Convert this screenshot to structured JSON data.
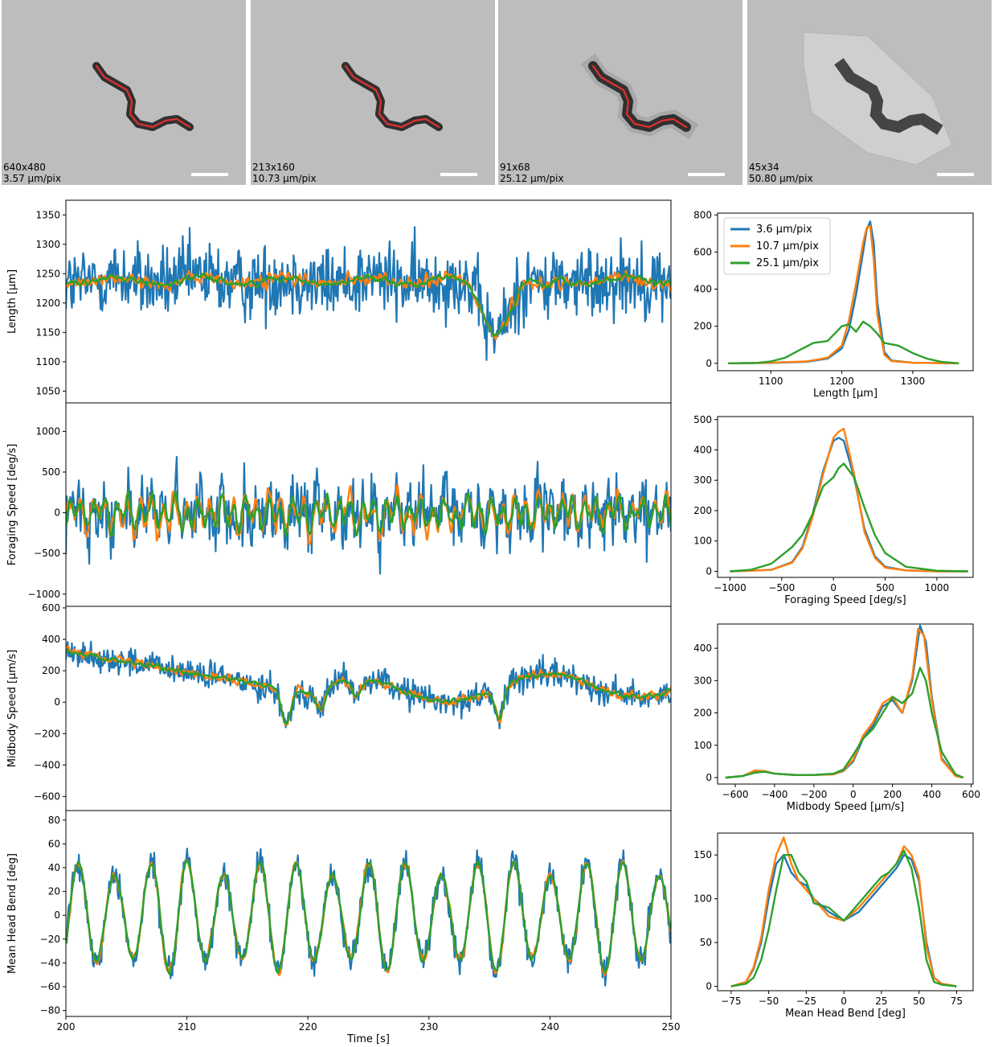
{
  "panels": [
    {
      "resolution": "640x480",
      "scale": "3.57 µm/pix",
      "crop": 1.0
    },
    {
      "resolution": "213x160",
      "scale": "10.73 µm/pix",
      "crop": 1.6
    },
    {
      "resolution": "91x68",
      "scale": "25.12 µm/pix",
      "crop": 3.2
    },
    {
      "resolution": "45x34",
      "scale": "50.80 µm/pix",
      "crop": 6.5
    }
  ],
  "colors": {
    "blue": "#1f77b4",
    "orange": "#ff7f0e",
    "green": "#2ca02c",
    "midline": "#e03030",
    "panel_bg": "#bdbdbd"
  },
  "chart_data": [
    {
      "id": "ts_length",
      "type": "line",
      "xlabel": "",
      "ylabel": "Length [µm]",
      "xlim": [
        200,
        250
      ],
      "ylim": [
        1030,
        1375
      ],
      "yticks": [
        1050,
        1100,
        1150,
        1200,
        1250,
        1300,
        1350
      ],
      "series": [
        {
          "name": "3.6 µm/pix",
          "color": "#1f77b4"
        },
        {
          "name": "10.7 µm/pix",
          "color": "#ff7f0e"
        },
        {
          "name": "25.1 µm/pix",
          "color": "#2ca02c"
        }
      ]
    },
    {
      "id": "ts_foraging",
      "type": "line",
      "xlabel": "",
      "ylabel": "Foraging Speed [deg/s]",
      "xlim": [
        200,
        250
      ],
      "ylim": [
        -1150,
        1350
      ],
      "yticks": [
        -1000,
        -500,
        0,
        500,
        1000
      ],
      "series": [
        {
          "name": "3.6 µm/pix",
          "color": "#1f77b4"
        },
        {
          "name": "10.7 µm/pix",
          "color": "#ff7f0e"
        },
        {
          "name": "25.1 µm/pix",
          "color": "#2ca02c"
        }
      ]
    },
    {
      "id": "ts_midbody",
      "type": "line",
      "xlabel": "",
      "ylabel": "Midbody Speed [µm/s]",
      "xlim": [
        200,
        250
      ],
      "ylim": [
        -690,
        610
      ],
      "yticks": [
        -600,
        -400,
        -200,
        0,
        200,
        400,
        600
      ],
      "series": [
        {
          "name": "3.6 µm/pix",
          "color": "#1f77b4"
        },
        {
          "name": "10.7 µm/pix",
          "color": "#ff7f0e"
        },
        {
          "name": "25.1 µm/pix",
          "color": "#2ca02c"
        }
      ]
    },
    {
      "id": "ts_headbend",
      "type": "line",
      "xlabel": "Time [s]",
      "ylabel": "Mean Head Bend [deg]",
      "xlim": [
        200,
        250
      ],
      "ylim": [
        -85,
        88
      ],
      "yticks": [
        -80,
        -60,
        -40,
        -20,
        0,
        20,
        40,
        60,
        80
      ],
      "xticks": [
        200,
        210,
        220,
        230,
        240,
        250
      ],
      "series": [
        {
          "name": "3.6 µm/pix",
          "color": "#1f77b4"
        },
        {
          "name": "10.7 µm/pix",
          "color": "#ff7f0e"
        },
        {
          "name": "25.1 µm/pix",
          "color": "#2ca02c"
        }
      ]
    },
    {
      "id": "h_length",
      "type": "line",
      "xlabel": "Length [µm]",
      "ylabel": "",
      "xlim": [
        1025,
        1385
      ],
      "ylim": [
        -40,
        810
      ],
      "xticks": [
        1100,
        1200,
        1300
      ],
      "yticks": [
        0,
        200,
        400,
        600,
        800
      ],
      "legend": "top-left",
      "series": [
        {
          "name": "3.6 µm/pix",
          "color": "#1f77b4",
          "x": [
            1040,
            1100,
            1150,
            1180,
            1200,
            1210,
            1220,
            1230,
            1235,
            1240,
            1245,
            1250,
            1260,
            1270,
            1300,
            1365
          ],
          "y": [
            0,
            2,
            8,
            25,
            80,
            180,
            370,
            600,
            720,
            765,
            650,
            330,
            60,
            15,
            3,
            0
          ]
        },
        {
          "name": "10.7 µm/pix",
          "color": "#ff7f0e",
          "x": [
            1040,
            1100,
            1150,
            1180,
            1200,
            1210,
            1220,
            1230,
            1235,
            1240,
            1245,
            1250,
            1260,
            1270,
            1300,
            1365
          ],
          "y": [
            0,
            3,
            10,
            30,
            95,
            230,
            430,
            650,
            730,
            740,
            560,
            260,
            45,
            12,
            3,
            0
          ]
        },
        {
          "name": "25.1 µm/pix",
          "color": "#2ca02c",
          "x": [
            1040,
            1080,
            1100,
            1120,
            1140,
            1160,
            1180,
            1200,
            1210,
            1220,
            1230,
            1240,
            1250,
            1260,
            1280,
            1300,
            1320,
            1340,
            1365
          ],
          "y": [
            0,
            2,
            10,
            30,
            70,
            110,
            120,
            200,
            210,
            170,
            225,
            200,
            160,
            110,
            95,
            55,
            25,
            8,
            0
          ]
        }
      ]
    },
    {
      "id": "h_foraging",
      "type": "line",
      "xlabel": "Foraging Speed [deg/s]",
      "ylabel": "",
      "xlim": [
        -1120,
        1350
      ],
      "ylim": [
        -20,
        510
      ],
      "xticks": [
        -1000,
        -500,
        0,
        500,
        1000
      ],
      "yticks": [
        0,
        100,
        200,
        300,
        400,
        500
      ],
      "series": [
        {
          "name": "3.6 µm/pix",
          "color": "#1f77b4",
          "x": [
            -1000,
            -800,
            -600,
            -400,
            -300,
            -200,
            -100,
            0,
            50,
            100,
            200,
            300,
            400,
            500,
            700,
            1000,
            1300
          ],
          "y": [
            0,
            2,
            5,
            30,
            80,
            190,
            330,
            430,
            440,
            430,
            310,
            140,
            50,
            15,
            3,
            0,
            0
          ]
        },
        {
          "name": "10.7 µm/pix",
          "color": "#ff7f0e",
          "x": [
            -1000,
            -800,
            -600,
            -400,
            -300,
            -200,
            -100,
            0,
            50,
            100,
            200,
            300,
            400,
            500,
            700,
            1000,
            1300
          ],
          "y": [
            0,
            2,
            5,
            28,
            75,
            180,
            320,
            440,
            460,
            470,
            320,
            130,
            45,
            12,
            3,
            0,
            0
          ]
        },
        {
          "name": "25.1 µm/pix",
          "color": "#2ca02c",
          "x": [
            -1000,
            -800,
            -600,
            -400,
            -300,
            -200,
            -100,
            0,
            50,
            100,
            200,
            300,
            400,
            500,
            700,
            1000,
            1300
          ],
          "y": [
            0,
            5,
            25,
            80,
            120,
            190,
            280,
            310,
            340,
            355,
            310,
            210,
            120,
            60,
            15,
            2,
            0
          ]
        }
      ]
    },
    {
      "id": "h_midbody",
      "type": "line",
      "xlabel": "Midbody Speed [µm/s]",
      "ylabel": "",
      "xlim": [
        -690,
        610
      ],
      "ylim": [
        -20,
        475
      ],
      "xticks": [
        -600,
        -400,
        -200,
        0,
        200,
        400,
        600
      ],
      "yticks": [
        0,
        100,
        200,
        300,
        400
      ],
      "series": [
        {
          "name": "3.6 µm/pix",
          "color": "#1f77b4",
          "x": [
            -650,
            -560,
            -500,
            -450,
            -400,
            -300,
            -200,
            -100,
            -50,
            0,
            50,
            100,
            150,
            200,
            250,
            300,
            340,
            370,
            400,
            450,
            520,
            560
          ],
          "y": [
            0,
            5,
            20,
            20,
            12,
            8,
            8,
            10,
            20,
            50,
            120,
            160,
            220,
            240,
            200,
            300,
            470,
            420,
            250,
            60,
            5,
            0
          ]
        },
        {
          "name": "10.7 µm/pix",
          "color": "#ff7f0e",
          "x": [
            -650,
            -560,
            -500,
            -450,
            -400,
            -300,
            -200,
            -100,
            -50,
            0,
            50,
            100,
            150,
            200,
            250,
            300,
            330,
            360,
            400,
            450,
            520,
            560
          ],
          "y": [
            0,
            5,
            22,
            20,
            12,
            8,
            8,
            10,
            22,
            55,
            130,
            170,
            230,
            250,
            200,
            310,
            460,
            440,
            240,
            55,
            5,
            0
          ]
        },
        {
          "name": "25.1 µm/pix",
          "color": "#2ca02c",
          "x": [
            -650,
            -560,
            -500,
            -450,
            -400,
            -300,
            -200,
            -100,
            -50,
            0,
            50,
            100,
            150,
            200,
            250,
            300,
            340,
            370,
            400,
            450,
            520,
            560
          ],
          "y": [
            0,
            5,
            15,
            18,
            12,
            8,
            8,
            12,
            25,
            70,
            120,
            150,
            200,
            250,
            230,
            260,
            340,
            300,
            200,
            80,
            10,
            0
          ]
        }
      ]
    },
    {
      "id": "h_headbend",
      "type": "line",
      "xlabel": "Mean Head Bend [deg]",
      "ylabel": "",
      "xlim": [
        -84,
        86
      ],
      "ylim": [
        -5,
        175
      ],
      "xticks": [
        -75,
        -50,
        -25,
        0,
        25,
        50,
        75
      ],
      "yticks": [
        0,
        50,
        100,
        150
      ],
      "series": [
        {
          "name": "3.6 µm/pix",
          "color": "#1f77b4",
          "x": [
            -75,
            -65,
            -60,
            -55,
            -50,
            -45,
            -40,
            -35,
            -30,
            -25,
            -20,
            -10,
            0,
            10,
            20,
            25,
            30,
            35,
            40,
            45,
            50,
            55,
            60,
            65,
            75
          ],
          "y": [
            0,
            5,
            20,
            50,
            100,
            140,
            150,
            130,
            120,
            115,
            100,
            85,
            75,
            85,
            105,
            115,
            125,
            135,
            150,
            145,
            120,
            50,
            10,
            3,
            0
          ]
        },
        {
          "name": "10.7 µm/pix",
          "color": "#ff7f0e",
          "x": [
            -75,
            -65,
            -60,
            -55,
            -50,
            -45,
            -40,
            -35,
            -30,
            -25,
            -20,
            -10,
            0,
            10,
            20,
            25,
            30,
            35,
            40,
            45,
            50,
            55,
            60,
            65,
            75
          ],
          "y": [
            0,
            5,
            22,
            55,
            110,
            150,
            170,
            140,
            120,
            110,
            100,
            80,
            75,
            90,
            110,
            120,
            130,
            140,
            160,
            150,
            125,
            45,
            10,
            3,
            0
          ]
        },
        {
          "name": "25.1 µm/pix",
          "color": "#2ca02c",
          "x": [
            -75,
            -65,
            -60,
            -55,
            -50,
            -45,
            -40,
            -35,
            -30,
            -25,
            -20,
            -10,
            0,
            10,
            20,
            25,
            30,
            35,
            40,
            45,
            50,
            55,
            60,
            65,
            75
          ],
          "y": [
            0,
            3,
            10,
            30,
            65,
            110,
            150,
            150,
            130,
            120,
            95,
            90,
            75,
            95,
            115,
            125,
            130,
            140,
            155,
            135,
            90,
            30,
            5,
            2,
            0
          ]
        }
      ]
    }
  ]
}
